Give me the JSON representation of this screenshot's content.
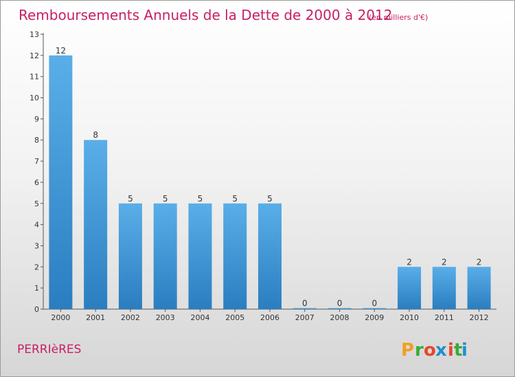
{
  "header": {
    "title": "Remboursements Annuels de la Dette de 2000 à 2012",
    "unit": "(en milliers d'€)"
  },
  "footer": {
    "commune": "PERRIèRES",
    "logo_text": "Proxiti",
    "logo_colors": [
      "#f0a020",
      "#3aaa35",
      "#e8452c",
      "#1e90d0",
      "#e8452c",
      "#3aaa35",
      "#1e90d0"
    ]
  },
  "chart_data": {
    "type": "bar",
    "title": "Remboursements Annuels de la Dette de 2000 à 2012",
    "subtitle": "(en milliers d'€)",
    "categories": [
      "2000",
      "2001",
      "2002",
      "2003",
      "2004",
      "2005",
      "2006",
      "2007",
      "2008",
      "2009",
      "2010",
      "2011",
      "2012"
    ],
    "values": [
      12,
      8,
      5,
      5,
      5,
      5,
      5,
      0,
      0,
      0,
      2,
      2,
      2
    ],
    "ylim": [
      0,
      13
    ],
    "yticks": [
      0,
      1,
      2,
      3,
      4,
      5,
      6,
      7,
      8,
      9,
      10,
      11,
      12,
      13
    ],
    "xlabel": "",
    "ylabel": "",
    "grid": false,
    "bar_color_top": "#5aaee8",
    "bar_color_bottom": "#2a7ec0",
    "data_labels": true
  }
}
